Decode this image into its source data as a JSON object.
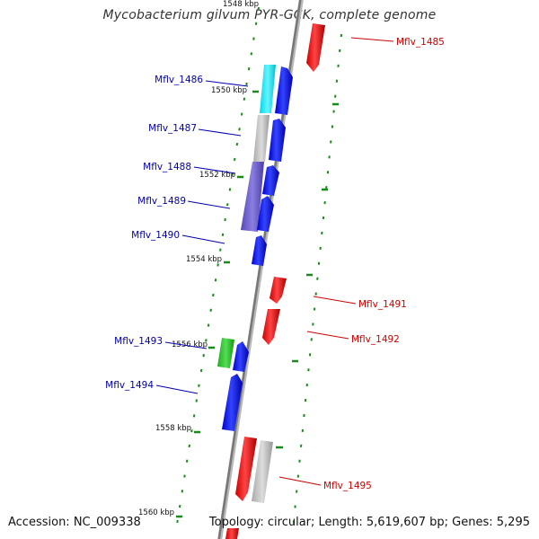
{
  "title": "Mycobacterium gilvum PYR-GCK, complete genome",
  "footer": {
    "accession": "Accession: NC_009338",
    "topology": "Topology: circular; Length: 5,619,607 bp; Genes: 5,295"
  },
  "colors": {
    "forward_strand_label": "#0000aa",
    "reverse_strand_label": "#cc0000",
    "backbone": "#888888",
    "ticks": "#1a8a1a"
  },
  "kbp_ticks": [
    "1548 kbp",
    "1550 kbp",
    "1552 kbp",
    "1554 kbp",
    "1556 kbp",
    "1558 kbp",
    "1560 kbp"
  ],
  "genes": [
    {
      "name": "Mflv_1485",
      "strand": "reverse"
    },
    {
      "name": "Mflv_1486",
      "strand": "forward"
    },
    {
      "name": "Mflv_1487",
      "strand": "forward"
    },
    {
      "name": "Mflv_1488",
      "strand": "forward"
    },
    {
      "name": "Mflv_1489",
      "strand": "forward"
    },
    {
      "name": "Mflv_1490",
      "strand": "forward"
    },
    {
      "name": "Mflv_1491",
      "strand": "reverse"
    },
    {
      "name": "Mflv_1492",
      "strand": "reverse"
    },
    {
      "name": "Mflv_1493",
      "strand": "forward"
    },
    {
      "name": "Mflv_1494",
      "strand": "forward"
    },
    {
      "name": "Mflv_1495",
      "strand": "reverse"
    }
  ]
}
